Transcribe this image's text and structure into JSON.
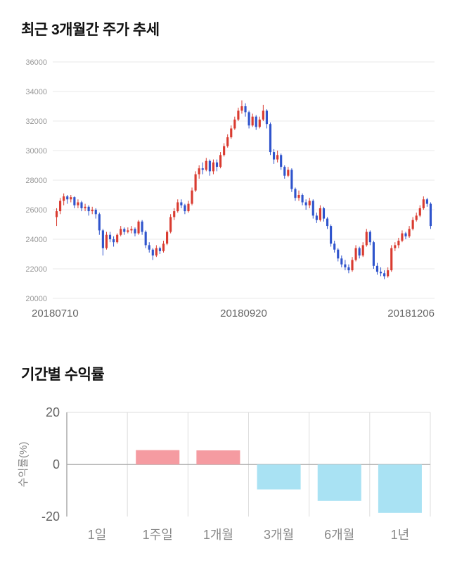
{
  "page": {
    "background": "#ffffff"
  },
  "chart_data": [
    {
      "type": "candlestick",
      "title": "최근 3개월간 주가 추세",
      "xlabel": "",
      "ylabel": "",
      "ylim": [
        20000,
        36000
      ],
      "y_ticks": [
        36000,
        34000,
        32000,
        30000,
        28000,
        26000,
        24000,
        22000,
        20000
      ],
      "x_labels": [
        "20180710",
        "20180920",
        "20181206"
      ],
      "grid": true,
      "legend": "none",
      "up_color": "#d93b30",
      "down_color": "#2f54cc",
      "grid_color": "#e8e8e8",
      "tick_color": "#999999",
      "x_label_color": "#666666",
      "candles_ohlc": [
        [
          25500,
          26100,
          24900,
          25900
        ],
        [
          25900,
          26800,
          25700,
          26600
        ],
        [
          26600,
          27100,
          26300,
          26900
        ],
        [
          26900,
          27000,
          26400,
          26700
        ],
        [
          26700,
          27000,
          26500,
          26850
        ],
        [
          26850,
          26900,
          26100,
          26300
        ],
        [
          26300,
          26700,
          26100,
          26500
        ],
        [
          26500,
          26600,
          25900,
          26100
        ],
        [
          26100,
          26400,
          25900,
          26200
        ],
        [
          26200,
          26300,
          25600,
          25900
        ],
        [
          25900,
          26200,
          25700,
          26000
        ],
        [
          26000,
          26100,
          25400,
          25700
        ],
        [
          25700,
          25800,
          24300,
          24600
        ],
        [
          24600,
          24700,
          22900,
          23400
        ],
        [
          23400,
          24500,
          23300,
          24300
        ],
        [
          24300,
          24500,
          23800,
          24000
        ],
        [
          24000,
          24200,
          23500,
          23800
        ],
        [
          23800,
          24400,
          23700,
          24300
        ],
        [
          24300,
          24900,
          24200,
          24700
        ],
        [
          24700,
          24800,
          24300,
          24500
        ],
        [
          24500,
          24800,
          24400,
          24600
        ],
        [
          24600,
          24900,
          24400,
          24700
        ],
        [
          24700,
          24800,
          24200,
          24400
        ],
        [
          24400,
          25300,
          24300,
          25200
        ],
        [
          25200,
          25300,
          24300,
          24500
        ],
        [
          24500,
          24600,
          23400,
          23600
        ],
        [
          23600,
          23800,
          23100,
          23300
        ],
        [
          23300,
          23400,
          22600,
          22900
        ],
        [
          22900,
          23600,
          22800,
          23400
        ],
        [
          23400,
          23500,
          23000,
          23200
        ],
        [
          23200,
          23900,
          23100,
          23700
        ],
        [
          23700,
          24600,
          23600,
          24500
        ],
        [
          24500,
          25700,
          24400,
          25500
        ],
        [
          25500,
          26100,
          25300,
          25900
        ],
        [
          25900,
          26700,
          25800,
          26500
        ],
        [
          26500,
          26700,
          26100,
          26300
        ],
        [
          26300,
          26400,
          25700,
          25900
        ],
        [
          25900,
          26600,
          25800,
          26400
        ],
        [
          26400,
          27500,
          26300,
          27300
        ],
        [
          27300,
          28600,
          27200,
          28400
        ],
        [
          28400,
          29000,
          28100,
          28800
        ],
        [
          28800,
          29200,
          28400,
          28700
        ],
        [
          28700,
          29500,
          28600,
          29300
        ],
        [
          29300,
          29400,
          28300,
          28600
        ],
        [
          28600,
          29400,
          28400,
          29200
        ],
        [
          29200,
          29400,
          28600,
          28900
        ],
        [
          28900,
          29900,
          28800,
          29700
        ],
        [
          29700,
          30500,
          29600,
          30300
        ],
        [
          30300,
          31100,
          30200,
          30900
        ],
        [
          30900,
          31700,
          30800,
          31500
        ],
        [
          31500,
          32300,
          31400,
          32100
        ],
        [
          32100,
          32900,
          32000,
          32700
        ],
        [
          32700,
          33400,
          32500,
          33000
        ],
        [
          33000,
          33200,
          32300,
          32600
        ],
        [
          32600,
          32700,
          31500,
          31700
        ],
        [
          31700,
          32500,
          31600,
          32300
        ],
        [
          32300,
          32400,
          31400,
          31600
        ],
        [
          31600,
          32300,
          31500,
          32100
        ],
        [
          32100,
          33100,
          32000,
          32700
        ],
        [
          32700,
          32800,
          31500,
          31800
        ],
        [
          31800,
          31900,
          29700,
          29900
        ],
        [
          29900,
          30100,
          29100,
          29400
        ],
        [
          29400,
          30000,
          29200,
          29700
        ],
        [
          29700,
          29800,
          28700,
          28900
        ],
        [
          28900,
          29000,
          28100,
          28300
        ],
        [
          28300,
          28900,
          28200,
          28700
        ],
        [
          28700,
          28800,
          27200,
          27400
        ],
        [
          27400,
          27500,
          26600,
          26800
        ],
        [
          26800,
          27300,
          26600,
          27000
        ],
        [
          27000,
          27100,
          26300,
          26500
        ],
        [
          26500,
          26700,
          26000,
          26300
        ],
        [
          26300,
          26800,
          26100,
          26600
        ],
        [
          26600,
          26700,
          25400,
          25600
        ],
        [
          25600,
          25800,
          25100,
          25300
        ],
        [
          25300,
          26300,
          25200,
          26100
        ],
        [
          26100,
          26200,
          25200,
          25400
        ],
        [
          25400,
          25500,
          24700,
          24900
        ],
        [
          24900,
          25000,
          23500,
          23700
        ],
        [
          23700,
          23900,
          23100,
          23300
        ],
        [
          23300,
          23400,
          22500,
          22700
        ],
        [
          22700,
          22900,
          22100,
          22300
        ],
        [
          22300,
          22600,
          21900,
          22100
        ],
        [
          22100,
          22300,
          21700,
          21900
        ],
        [
          21900,
          22800,
          21800,
          22600
        ],
        [
          22600,
          23600,
          22500,
          23400
        ],
        [
          23400,
          23500,
          22700,
          22900
        ],
        [
          22900,
          23800,
          22800,
          23600
        ],
        [
          23600,
          24700,
          23500,
          24500
        ],
        [
          24500,
          24600,
          23600,
          23800
        ],
        [
          23800,
          23900,
          22000,
          22200
        ],
        [
          22200,
          22400,
          21600,
          21800
        ],
        [
          21800,
          22100,
          21500,
          21700
        ],
        [
          21700,
          21900,
          21300,
          21500
        ],
        [
          21500,
          22100,
          21400,
          21900
        ],
        [
          21900,
          23600,
          21800,
          23400
        ],
        [
          23400,
          23800,
          23200,
          23600
        ],
        [
          23600,
          24100,
          23400,
          23900
        ],
        [
          23900,
          24600,
          23800,
          24400
        ],
        [
          24400,
          24500,
          24000,
          24200
        ],
        [
          24200,
          24900,
          24100,
          24700
        ],
        [
          24700,
          25500,
          24600,
          25300
        ],
        [
          25300,
          25800,
          25200,
          25600
        ],
        [
          25600,
          26300,
          25500,
          26100
        ],
        [
          26100,
          26900,
          26000,
          26700
        ],
        [
          26700,
          26800,
          26200,
          26400
        ],
        [
          26400,
          26500,
          24700,
          24900
        ]
      ]
    },
    {
      "type": "bar",
      "title": "기간별 수익률",
      "xlabel": "",
      "ylabel": "수익률(%)",
      "categories": [
        "1일",
        "1주일",
        "1개월",
        "3개월",
        "6개월",
        "1년"
      ],
      "values": [
        0,
        5.5,
        5.4,
        -9.6,
        -14.0,
        -18.6
      ],
      "ylim": [
        -20,
        20
      ],
      "y_ticks": [
        20,
        0,
        -20
      ],
      "grid": true,
      "legend": "none",
      "positive_color": "#f59ba1",
      "negative_color": "#a9e2f3",
      "axis_color": "#aaaaaa",
      "grid_color": "#dddddd",
      "tick_color": "#666666",
      "category_color": "#888888"
    }
  ]
}
